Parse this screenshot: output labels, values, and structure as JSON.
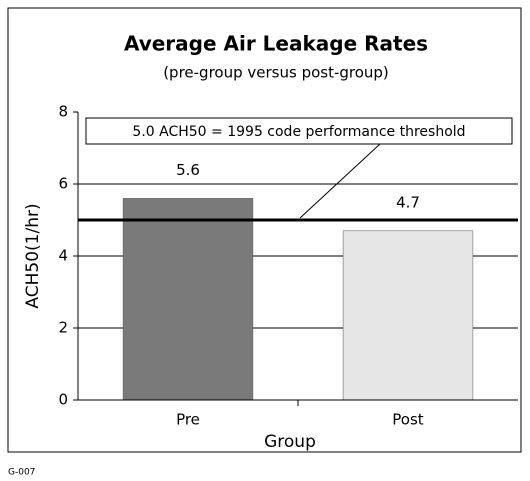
{
  "chart_data": {
    "type": "bar",
    "title": "Average Air Leakage Rates",
    "subtitle": "(pre-group versus post-group)",
    "x_label": "Group",
    "y_label": "ACH50(1/hr)",
    "categories": [
      "Pre",
      "Post"
    ],
    "values": [
      5.6,
      4.7
    ],
    "colors": [
      "#7a7a7a",
      "#e6e6e6"
    ],
    "ylim": [
      0,
      8
    ],
    "yticks": [
      0,
      2,
      4,
      6,
      8
    ],
    "grid": true,
    "threshold": {
      "value": 5.0,
      "label": "5.0 ACH50 = 1995 code performance threshold"
    },
    "footer": "G-007"
  }
}
